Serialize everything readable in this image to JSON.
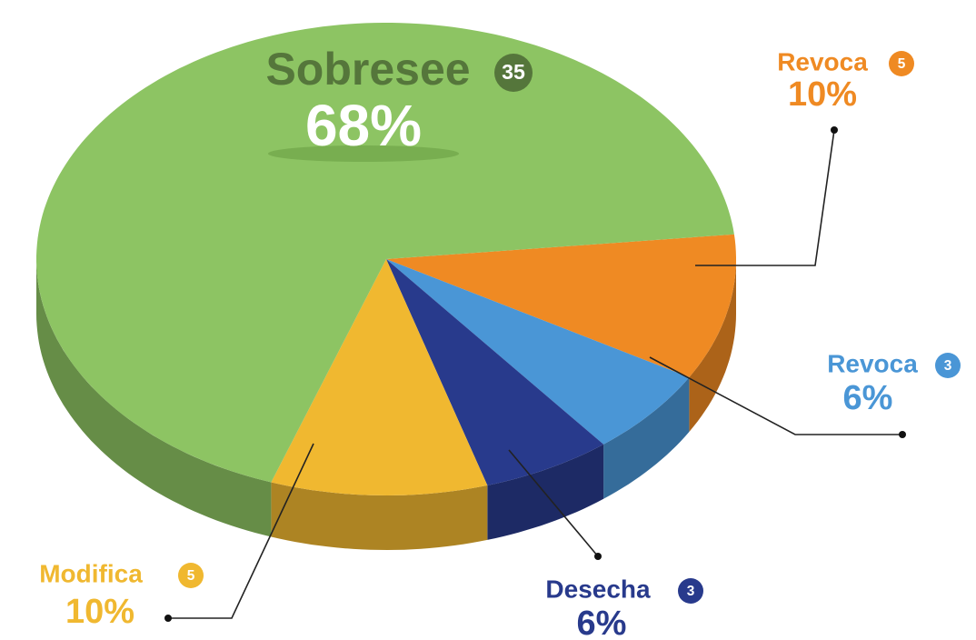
{
  "chart_data": {
    "type": "pie",
    "categories": [
      "Revoca",
      "Revoca",
      "Desecha",
      "Modifica",
      "Sobresee"
    ],
    "values": [
      10,
      6,
      6,
      10,
      68
    ],
    "value_labels": [
      "10%",
      "6%",
      "6%",
      "10%",
      "68%"
    ],
    "counts": [
      5,
      3,
      3,
      5,
      35
    ],
    "colors": [
      "#ef8a23",
      "#4a96d6",
      "#283a8c",
      "#f0b830",
      "#8dc463"
    ]
  }
}
